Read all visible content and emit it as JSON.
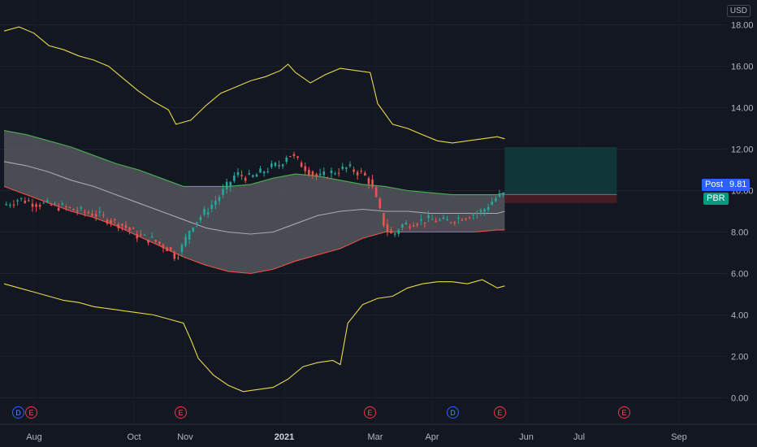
{
  "currency_label": "USD",
  "ticker": "PBR",
  "post_label": "Post",
  "post_price": "9.81",
  "colors": {
    "background": "#131722",
    "upper_outer_band": "#e8d84a",
    "lower_outer_band": "#e8d84a",
    "upper_inner_band": "#4caf50",
    "lower_inner_band": "#f0504a",
    "band_fill": "#5d5f66",
    "middle_line": "#a9aab0",
    "candle_up": "#26a69a",
    "candle_down": "#ef5350",
    "target_zone": "#0f3a3b",
    "stop_zone": "#4a1d25"
  },
  "events": [
    {
      "type": "D",
      "x_label": "Jul"
    },
    {
      "type": "E",
      "x_label": "Aug"
    },
    {
      "type": "E",
      "x_label": "Oct/Nov"
    },
    {
      "type": "E",
      "x_label": "Feb/Mar"
    },
    {
      "type": "D",
      "x_label": "Apr/May"
    },
    {
      "type": "E",
      "x_label": "May"
    },
    {
      "type": "E",
      "x_label": "Aug"
    }
  ],
  "chart_data": {
    "type": "line",
    "yaxis_ticks": [
      "18.00",
      "16.00",
      "14.00",
      "12.00",
      "10.00",
      "8.00",
      "6.00",
      "4.00",
      "2.00",
      "0.00"
    ],
    "ylim": [
      -1.2,
      19.2
    ],
    "xaxis_ticks": [
      "Aug",
      "Oct",
      "Nov",
      "2021",
      "Mar",
      "Apr",
      "Jun",
      "Jul",
      "Sep"
    ],
    "x_index_range": [
      0,
      100
    ],
    "series": [
      {
        "key": "upper_outer",
        "points": [
          [
            0,
            17.7
          ],
          [
            2,
            17.9
          ],
          [
            4,
            17.6
          ],
          [
            6,
            17.0
          ],
          [
            8,
            16.8
          ],
          [
            10,
            16.5
          ],
          [
            12,
            16.3
          ],
          [
            14,
            16.0
          ],
          [
            16,
            15.4
          ],
          [
            18,
            14.8
          ],
          [
            20,
            14.3
          ],
          [
            22,
            13.9
          ],
          [
            23,
            13.2
          ],
          [
            25,
            13.4
          ],
          [
            27,
            14.1
          ],
          [
            29,
            14.7
          ],
          [
            31,
            15.0
          ],
          [
            33,
            15.3
          ],
          [
            35,
            15.5
          ],
          [
            37,
            15.8
          ],
          [
            38,
            16.1
          ],
          [
            39,
            15.7
          ],
          [
            41,
            15.2
          ],
          [
            43,
            15.6
          ],
          [
            45,
            15.9
          ],
          [
            47,
            15.8
          ],
          [
            49,
            15.7
          ],
          [
            50,
            14.2
          ],
          [
            52,
            13.2
          ],
          [
            54,
            13.0
          ],
          [
            56,
            12.7
          ],
          [
            58,
            12.4
          ],
          [
            60,
            12.3
          ],
          [
            62,
            12.4
          ],
          [
            64,
            12.5
          ],
          [
            66,
            12.6
          ],
          [
            67,
            12.5
          ]
        ]
      },
      {
        "key": "upper_inner",
        "points": [
          [
            0,
            12.9
          ],
          [
            3,
            12.7
          ],
          [
            6,
            12.4
          ],
          [
            9,
            12.1
          ],
          [
            12,
            11.7
          ],
          [
            15,
            11.3
          ],
          [
            18,
            11.0
          ],
          [
            21,
            10.6
          ],
          [
            24,
            10.2
          ],
          [
            27,
            10.2
          ],
          [
            30,
            10.2
          ],
          [
            33,
            10.3
          ],
          [
            36,
            10.6
          ],
          [
            39,
            10.8
          ],
          [
            42,
            10.7
          ],
          [
            45,
            10.5
          ],
          [
            48,
            10.3
          ],
          [
            51,
            10.2
          ],
          [
            54,
            10.0
          ],
          [
            57,
            9.9
          ],
          [
            60,
            9.8
          ],
          [
            63,
            9.8
          ],
          [
            66,
            9.8
          ],
          [
            67,
            9.9
          ]
        ]
      },
      {
        "key": "middle",
        "points": [
          [
            0,
            11.4
          ],
          [
            3,
            11.2
          ],
          [
            6,
            10.9
          ],
          [
            9,
            10.5
          ],
          [
            12,
            10.2
          ],
          [
            15,
            9.8
          ],
          [
            18,
            9.4
          ],
          [
            21,
            9.0
          ],
          [
            24,
            8.6
          ],
          [
            27,
            8.2
          ],
          [
            30,
            8.0
          ],
          [
            33,
            7.9
          ],
          [
            36,
            8.0
          ],
          [
            39,
            8.4
          ],
          [
            42,
            8.8
          ],
          [
            45,
            9.0
          ],
          [
            48,
            9.1
          ],
          [
            51,
            9.0
          ],
          [
            54,
            9.0
          ],
          [
            57,
            8.9
          ],
          [
            60,
            8.9
          ],
          [
            63,
            8.9
          ],
          [
            66,
            8.9
          ],
          [
            67,
            9.0
          ]
        ]
      },
      {
        "key": "lower_inner",
        "points": [
          [
            0,
            10.2
          ],
          [
            3,
            9.8
          ],
          [
            6,
            9.4
          ],
          [
            9,
            9.0
          ],
          [
            12,
            8.7
          ],
          [
            15,
            8.3
          ],
          [
            18,
            7.8
          ],
          [
            21,
            7.3
          ],
          [
            24,
            6.8
          ],
          [
            27,
            6.4
          ],
          [
            30,
            6.1
          ],
          [
            33,
            6.0
          ],
          [
            36,
            6.2
          ],
          [
            39,
            6.6
          ],
          [
            42,
            6.9
          ],
          [
            45,
            7.2
          ],
          [
            48,
            7.7
          ],
          [
            51,
            8.0
          ],
          [
            54,
            8.0
          ],
          [
            57,
            8.0
          ],
          [
            60,
            8.0
          ],
          [
            63,
            8.0
          ],
          [
            66,
            8.1
          ],
          [
            67,
            8.1
          ]
        ]
      },
      {
        "key": "lower_outer",
        "points": [
          [
            0,
            5.5
          ],
          [
            2,
            5.3
          ],
          [
            4,
            5.1
          ],
          [
            6,
            4.9
          ],
          [
            8,
            4.7
          ],
          [
            10,
            4.6
          ],
          [
            12,
            4.4
          ],
          [
            14,
            4.3
          ],
          [
            16,
            4.2
          ],
          [
            18,
            4.1
          ],
          [
            20,
            4.0
          ],
          [
            22,
            3.8
          ],
          [
            24,
            3.6
          ],
          [
            25,
            2.8
          ],
          [
            26,
            1.9
          ],
          [
            28,
            1.1
          ],
          [
            30,
            0.6
          ],
          [
            32,
            0.3
          ],
          [
            34,
            0.4
          ],
          [
            36,
            0.5
          ],
          [
            38,
            0.9
          ],
          [
            40,
            1.5
          ],
          [
            42,
            1.7
          ],
          [
            44,
            1.8
          ],
          [
            45,
            1.6
          ],
          [
            46,
            3.6
          ],
          [
            48,
            4.5
          ],
          [
            50,
            4.8
          ],
          [
            52,
            4.9
          ],
          [
            54,
            5.3
          ],
          [
            56,
            5.5
          ],
          [
            58,
            5.6
          ],
          [
            60,
            5.6
          ],
          [
            62,
            5.5
          ],
          [
            64,
            5.7
          ],
          [
            66,
            5.3
          ],
          [
            67,
            5.4
          ]
        ]
      },
      {
        "key": "candles",
        "points": [
          [
            0,
            9.3
          ],
          [
            2,
            9.6
          ],
          [
            4,
            9.4
          ],
          [
            6,
            9.3
          ],
          [
            8,
            9.2
          ],
          [
            10,
            9.0
          ],
          [
            12,
            8.9
          ],
          [
            14,
            8.6
          ],
          [
            16,
            8.3
          ],
          [
            18,
            7.8
          ],
          [
            20,
            7.6
          ],
          [
            22,
            7.2
          ],
          [
            23,
            6.8
          ],
          [
            24,
            7.4
          ],
          [
            25,
            8.3
          ],
          [
            27,
            9.0
          ],
          [
            29,
            9.8
          ],
          [
            31,
            10.8
          ],
          [
            33,
            10.6
          ],
          [
            35,
            11.0
          ],
          [
            37,
            11.3
          ],
          [
            38,
            11.8
          ],
          [
            40,
            11.2
          ],
          [
            42,
            10.6
          ],
          [
            44,
            10.9
          ],
          [
            46,
            11.1
          ],
          [
            48,
            10.8
          ],
          [
            49,
            10.4
          ],
          [
            50,
            9.3
          ],
          [
            51,
            8.2
          ],
          [
            52,
            7.8
          ],
          [
            53,
            8.3
          ],
          [
            55,
            8.5
          ],
          [
            57,
            8.6
          ],
          [
            59,
            8.5
          ],
          [
            61,
            8.7
          ],
          [
            63,
            8.9
          ],
          [
            64,
            9.0
          ],
          [
            65,
            9.4
          ],
          [
            66,
            9.7
          ],
          [
            67,
            9.81
          ]
        ]
      }
    ],
    "position_tool": {
      "entry": 9.81,
      "target": 12.1,
      "stop": 9.4,
      "x_start_index": 67,
      "x_end_index": 82
    }
  }
}
